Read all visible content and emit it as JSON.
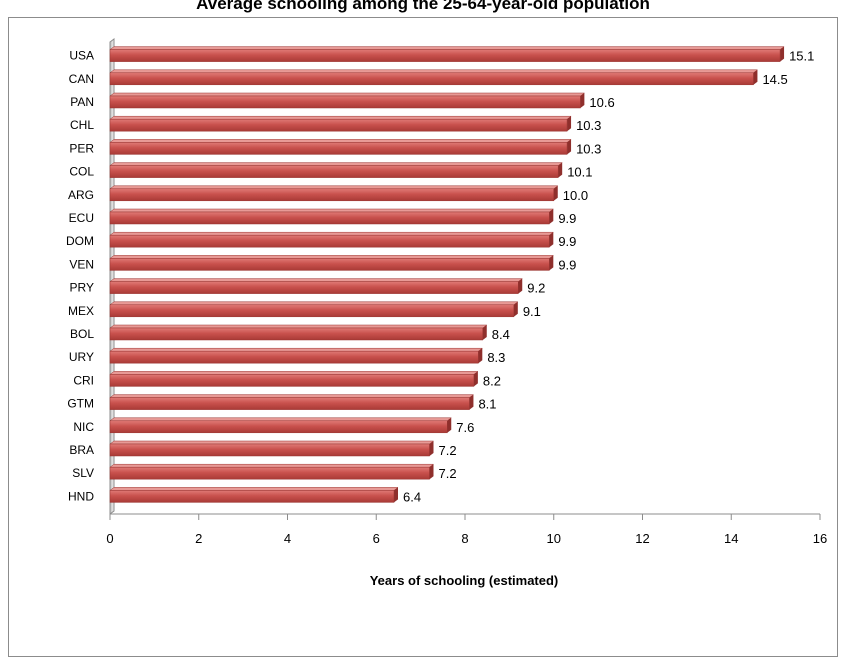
{
  "chart_data": {
    "type": "bar",
    "orientation": "horizontal",
    "title": "Average schooling among the 25-64-year-old population",
    "xlabel": "Years of schooling  (estimated)",
    "categories": [
      "USA",
      "CAN",
      "PAN",
      "CHL",
      "PER",
      "COL",
      "ARG",
      "ECU",
      "DOM",
      "VEN",
      "PRY",
      "MEX",
      "BOL",
      "URY",
      "CRI",
      "GTM",
      "NIC",
      "BRA",
      "SLV",
      "HND"
    ],
    "values": [
      15.1,
      14.5,
      10.6,
      10.3,
      10.3,
      10.1,
      10.0,
      9.9,
      9.9,
      9.9,
      9.2,
      9.1,
      8.4,
      8.3,
      8.2,
      8.1,
      7.6,
      7.2,
      7.2,
      6.4
    ],
    "value_labels": [
      "15.1",
      "14.5",
      "10.6",
      "10.3",
      "10.3",
      "10.1",
      "10.0",
      "9.9",
      "9.9",
      "9.9",
      "9.2",
      "9.1",
      "8.4",
      "8.3",
      "8.2",
      "8.1",
      "7.6",
      "7.2",
      "7.2",
      "6.4"
    ],
    "xlim": [
      0,
      16
    ],
    "xticks": [
      0,
      2,
      4,
      6,
      8,
      10,
      12,
      14,
      16
    ],
    "grid": false,
    "legend": "none",
    "bar_color": "#c0504d"
  }
}
